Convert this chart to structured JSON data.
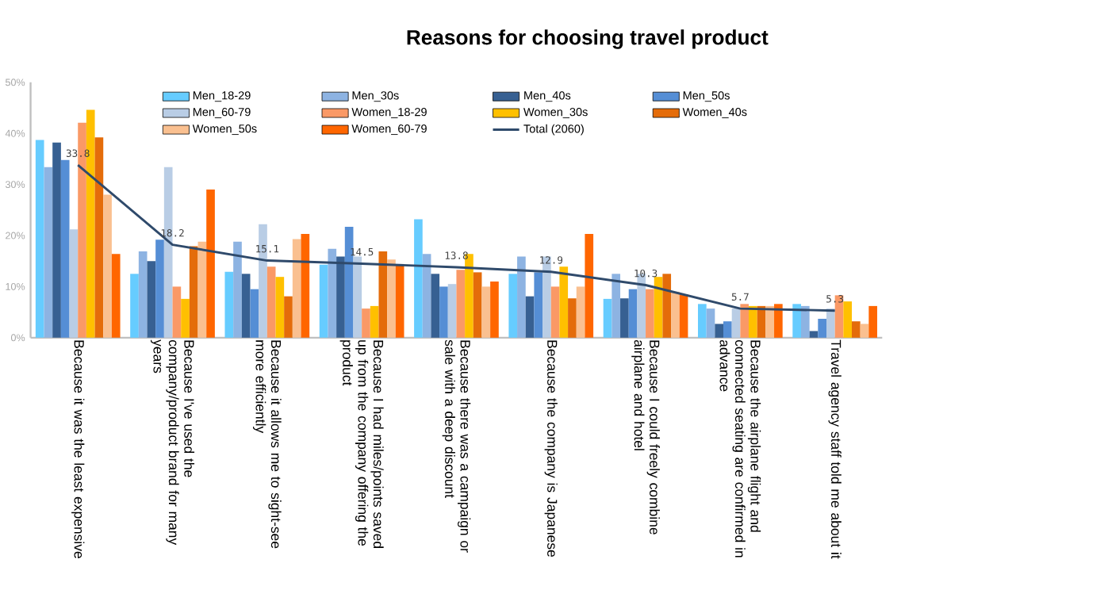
{
  "chart_data": {
    "type": "bar",
    "title": "Reasons for choosing travel product",
    "categories": [
      "Because it was the least expensive",
      "Because I've used the company/product brand for many years",
      "Because it allows me to sight-see more efficiently",
      "Because I had miles/points saved up from the company offering the product",
      "Because there was a campaign or sale with a deep discount",
      "Because the company is Japanese",
      "Because I could freely combine airplane and hotel",
      "Because the airplane flight and connected seating are confirmed in advance",
      "Travel agency staff told me about it"
    ],
    "series": [
      {
        "name": "Men_18-29",
        "color": "#66ccff",
        "values": [
          38.7,
          12.5,
          12.9,
          14.3,
          23.2,
          12.5,
          7.6,
          6.6,
          6.6
        ]
      },
      {
        "name": "Men_30s",
        "color": "#8db3e2",
        "values": [
          33.4,
          16.9,
          18.8,
          17.4,
          16.4,
          15.9,
          12.5,
          5.7,
          6.2
        ]
      },
      {
        "name": "Men_40s",
        "color": "#376092",
        "values": [
          38.2,
          15.0,
          12.5,
          15.9,
          12.5,
          8.1,
          7.7,
          2.7,
          1.3
        ]
      },
      {
        "name": "Men_50s",
        "color": "#558ed5",
        "values": [
          34.8,
          19.2,
          9.5,
          21.7,
          10.0,
          12.8,
          9.5,
          3.2,
          3.7
        ]
      },
      {
        "name": "Men_60-79",
        "color": "#b9cde5",
        "values": [
          21.2,
          33.4,
          22.2,
          15.9,
          10.5,
          15.9,
          12.5,
          5.7,
          5.7
        ]
      },
      {
        "name": "Women_18-29",
        "color": "#fa9966",
        "values": [
          42.1,
          10.0,
          13.9,
          5.7,
          13.3,
          10.0,
          9.5,
          6.6,
          8.3
        ]
      },
      {
        "name": "Women_30s",
        "color": "#ffc000",
        "values": [
          44.6,
          7.6,
          11.9,
          6.2,
          16.4,
          13.9,
          11.9,
          6.2,
          7.1
        ]
      },
      {
        "name": "Women_40s",
        "color": "#e46c0a",
        "values": [
          39.2,
          17.9,
          8.1,
          16.9,
          12.8,
          7.7,
          12.5,
          6.2,
          3.2
        ]
      },
      {
        "name": "Women_50s",
        "color": "#fac090",
        "values": [
          28.0,
          18.8,
          19.3,
          15.3,
          10.0,
          10.0,
          9.0,
          6.2,
          2.7
        ]
      },
      {
        "name": "Women_60-79",
        "color": "#ff6600",
        "values": [
          16.4,
          29.0,
          20.3,
          14.2,
          11.0,
          20.3,
          8.5,
          6.6,
          6.2
        ]
      },
      {
        "name": "Total (2060)",
        "type": "line",
        "color": "#2f4a6b",
        "values": [
          33.8,
          18.2,
          15.1,
          14.5,
          13.8,
          12.9,
          10.3,
          5.7,
          5.3
        ],
        "value_labels": [
          "33.8",
          "18.2",
          "15.1",
          "14.5",
          "13.8",
          "12.9",
          "10.3",
          "5.7",
          "5.3"
        ]
      }
    ],
    "ylim": [
      0,
      50
    ],
    "yticks": [
      {
        "value": 0,
        "label": "0%"
      },
      {
        "value": 10,
        "label": "10%"
      },
      {
        "value": 20,
        "label": "20%"
      },
      {
        "value": 30,
        "label": "30%"
      },
      {
        "value": 40,
        "label": "40%"
      },
      {
        "value": 50,
        "label": "50%"
      }
    ],
    "legend": "top"
  }
}
